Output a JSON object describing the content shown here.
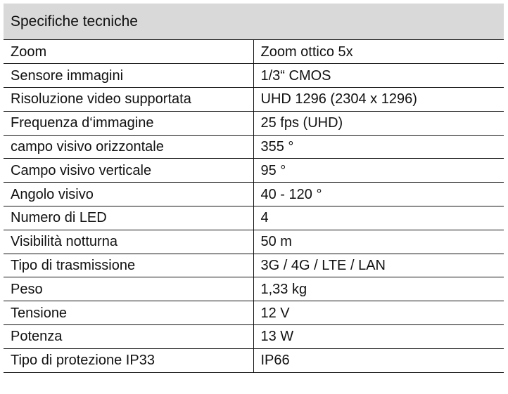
{
  "header": {
    "title": "Specifiche tecniche"
  },
  "table": {
    "rows": [
      [
        "Zoom",
        "Zoom ottico 5x"
      ],
      [
        "Sensore immagini",
        "1/3“ CMOS"
      ],
      [
        "Risoluzione video supportata",
        "UHD 1296 (2304 x 1296)"
      ],
      [
        "Frequenza d‘immagine",
        "25 fps (UHD)"
      ],
      [
        "campo visivo orizzontale",
        "355 °"
      ],
      [
        "Campo visivo verticale",
        "95 °"
      ],
      [
        "Angolo visivo",
        "40 - 120 °"
      ],
      [
        "Numero di LED",
        "4"
      ],
      [
        "Visibilità notturna",
        "50 m"
      ],
      [
        "Tipo di trasmissione",
        "3G / 4G / LTE / LAN"
      ],
      [
        "Peso",
        "1,33 kg"
      ],
      [
        "Tensione",
        "12 V"
      ],
      [
        "Potenza",
        "13 W"
      ],
      [
        "Tipo di protezione IP33",
        "IP66"
      ]
    ]
  }
}
